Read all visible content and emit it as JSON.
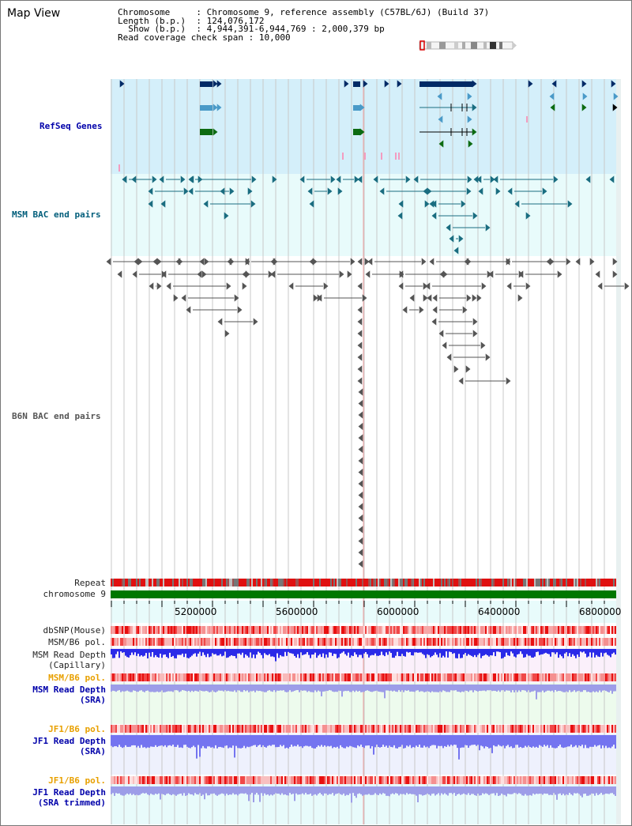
{
  "page": {
    "title": "Map View"
  },
  "info": {
    "chromosome_key": "Chromosome",
    "chromosome_value": "Chromosome 9, reference assembly (C57BL/6J) (Build 37)",
    "length_key": "Length (b.p.)",
    "length_value": "124,076,172",
    "show_key": "Show (b.p.)",
    "show_value": "4,944,391-6,944,769 : 2,000,379 bp",
    "span_key": "Read coverage check span",
    "span_value": "10,000"
  },
  "tracks": {
    "refseq": "RefSeq Genes",
    "msm_bac": "MSM BAC end pairs",
    "b6n_bac": "B6N BAC end pairs",
    "repeat": "Repeat",
    "chromosome": "chromosome 9",
    "dbsnp": "dbSNP(Mouse)",
    "msm_b6_pol_1": "MSM/B6 pol.",
    "msm_depth_cap_1": "MSM Read Depth",
    "msm_depth_cap_2": "(Capillary)",
    "msm_b6_pol_2": "MSM/B6 pol.",
    "msm_depth_sra_1": "MSM Read Depth",
    "msm_depth_sra_2": "(SRA)",
    "jf1_b6_pol_1": "JF1/B6 pol.",
    "jf1_depth_sra_1": "JF1 Read Depth",
    "jf1_depth_sra_2": "(SRA)",
    "jf1_b6_pol_2": "JF1/B6 pol.",
    "jf1_depth_trim_1": "JF1 Read Depth",
    "jf1_depth_trim_2": "(SRA trimmed)"
  },
  "axis": {
    "ticks": [
      "5200000",
      "5600000",
      "6000000",
      "6400000",
      "6800000"
    ],
    "range": [
      4944391,
      6944769
    ]
  },
  "colors": {
    "refseq_bg": "#d4effa",
    "bac_bg": "#e8fbfb",
    "gene_navy": "#002a66",
    "gene_sky": "#4a9ac8",
    "gene_green": "#0d6b12",
    "chromosome_bar": "#007700"
  }
}
